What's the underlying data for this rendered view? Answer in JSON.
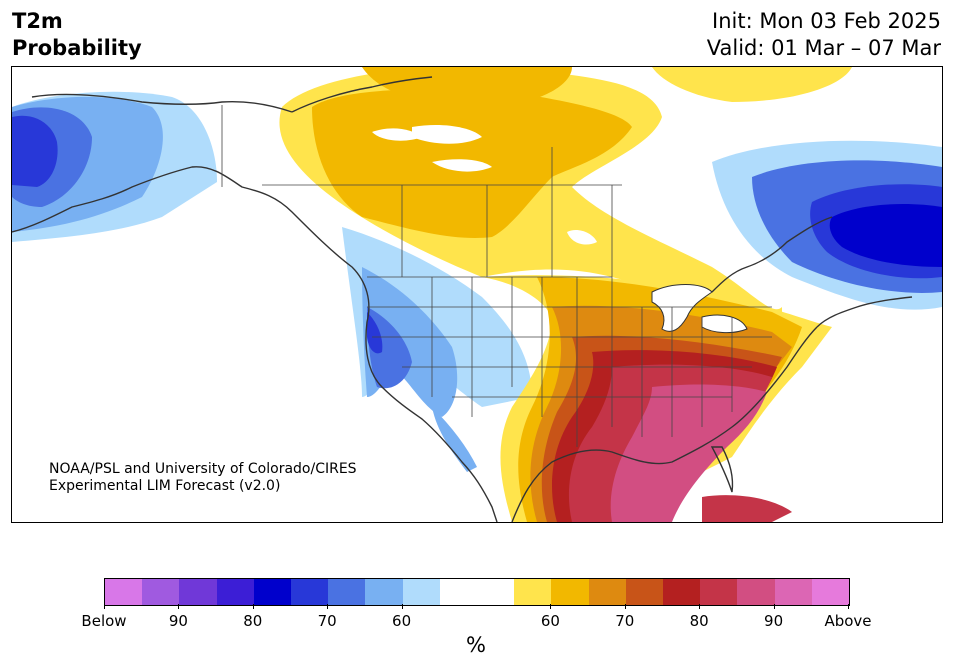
{
  "header": {
    "title_line1": "T2m",
    "title_line2": "Probability",
    "init": "Init: Mon 03 Feb 2025",
    "valid": "Valid: 01 Mar – 07 Mar"
  },
  "credit": {
    "line1": "NOAA/PSL and University of Colorado/CIRES",
    "line2": "Experimental LIM Forecast (v2.0)"
  },
  "colorbar": {
    "colors": [
      "#d877e8",
      "#a05ae0",
      "#7038d8",
      "#3c1ed6",
      "#0000cc",
      "#2838d8",
      "#4a72e2",
      "#78b0f2",
      "#b0dcfc",
      "#ffffff",
      "#ffffff",
      "#ffe44c",
      "#f2b800",
      "#de8a10",
      "#c85418",
      "#b42020",
      "#c43448",
      "#d24e82",
      "#dc66b4",
      "#e67adc"
    ],
    "labels": [
      "Below",
      "90",
      "80",
      "70",
      "60",
      "60",
      "70",
      "80",
      "90",
      "Above"
    ],
    "unit": "%"
  },
  "legend_colors": {
    "above_normal_shades": [
      "#ffe44c",
      "#f2b800",
      "#de8a10",
      "#c85418",
      "#b42020",
      "#c43448",
      "#d24e82"
    ],
    "below_normal_shades": [
      "#b0dcfc",
      "#78b0f2",
      "#4a72e2",
      "#2838d8",
      "#0000cc"
    ]
  }
}
